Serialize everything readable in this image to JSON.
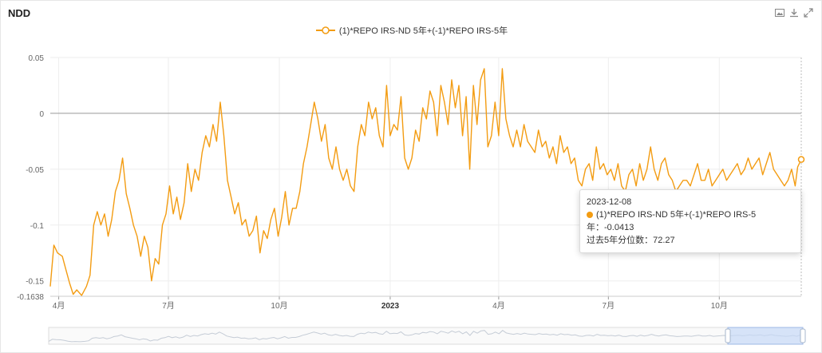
{
  "header": {
    "title": "NDD"
  },
  "toolbox": {
    "icons": [
      "save-image-icon",
      "download-icon",
      "fullscreen-icon"
    ]
  },
  "legend": {
    "label": "(1)*REPO IRS-ND 5年+(-1)*REPO IRS-5年",
    "color": "#f39c12"
  },
  "tooltip": {
    "date": "2023-12-08",
    "series_text": "(1)*REPO IRS-ND 5年+(-1)*REPO IRS-5年：-0.0413",
    "percentile_text": "过去5年分位数：72.27"
  },
  "colors": {
    "line": "#f39c12",
    "axis": "#999999",
    "grid": "#eeeeee",
    "zoom_fill": "#c6d9f7"
  },
  "chart_data": {
    "type": "line",
    "title": "NDD",
    "xlabel": "",
    "ylabel": "",
    "ylim": [
      -0.1638,
      0.05
    ],
    "y_ticks": [
      {
        "value": 0.05,
        "label": "0.05"
      },
      {
        "value": 0,
        "label": "0"
      },
      {
        "value": -0.05,
        "label": "-0.05"
      },
      {
        "value": -0.1,
        "label": "-0.1"
      },
      {
        "value": -0.15,
        "label": "-0.15"
      },
      {
        "value": -0.1638,
        "label": "-0.1638"
      }
    ],
    "x_range": [
      "2022-03-25",
      "2023-12-08"
    ],
    "x_ticks": [
      {
        "date": "2022-04-01",
        "label": "4月",
        "bold": false
      },
      {
        "date": "2022-07-01",
        "label": "7月",
        "bold": false
      },
      {
        "date": "2022-10-01",
        "label": "10月",
        "bold": false
      },
      {
        "date": "2023-01-01",
        "label": "2023",
        "bold": true
      },
      {
        "date": "2023-04-01",
        "label": "4月",
        "bold": false
      },
      {
        "date": "2023-07-01",
        "label": "7月",
        "bold": false
      },
      {
        "date": "2023-10-01",
        "label": "10月",
        "bold": false
      }
    ],
    "grid": true,
    "legend_position": "top-center",
    "series": [
      {
        "name": "(1)*REPO IRS-ND 5年+(-1)*REPO IRS-5年",
        "points": [
          [
            "2022-03-25",
            -0.155
          ],
          [
            "2022-03-28",
            -0.118
          ],
          [
            "2022-03-31",
            -0.125
          ],
          [
            "2022-04-04",
            -0.128
          ],
          [
            "2022-04-07",
            -0.14
          ],
          [
            "2022-04-10",
            -0.152
          ],
          [
            "2022-04-13",
            -0.162
          ],
          [
            "2022-04-16",
            -0.158
          ],
          [
            "2022-04-20",
            -0.163
          ],
          [
            "2022-04-24",
            -0.155
          ],
          [
            "2022-04-27",
            -0.145
          ],
          [
            "2022-04-30",
            -0.1
          ],
          [
            "2022-05-03",
            -0.088
          ],
          [
            "2022-05-06",
            -0.1
          ],
          [
            "2022-05-09",
            -0.09
          ],
          [
            "2022-05-12",
            -0.11
          ],
          [
            "2022-05-15",
            -0.095
          ],
          [
            "2022-05-18",
            -0.07
          ],
          [
            "2022-05-21",
            -0.06
          ],
          [
            "2022-05-24",
            -0.04
          ],
          [
            "2022-05-27",
            -0.072
          ],
          [
            "2022-05-30",
            -0.085
          ],
          [
            "2022-06-02",
            -0.1
          ],
          [
            "2022-06-05",
            -0.11
          ],
          [
            "2022-06-08",
            -0.128
          ],
          [
            "2022-06-11",
            -0.11
          ],
          [
            "2022-06-14",
            -0.12
          ],
          [
            "2022-06-17",
            -0.15
          ],
          [
            "2022-06-20",
            -0.13
          ],
          [
            "2022-06-23",
            -0.135
          ],
          [
            "2022-06-26",
            -0.1
          ],
          [
            "2022-06-29",
            -0.09
          ],
          [
            "2022-07-02",
            -0.065
          ],
          [
            "2022-07-05",
            -0.09
          ],
          [
            "2022-07-08",
            -0.075
          ],
          [
            "2022-07-11",
            -0.095
          ],
          [
            "2022-07-14",
            -0.08
          ],
          [
            "2022-07-17",
            -0.045
          ],
          [
            "2022-07-20",
            -0.07
          ],
          [
            "2022-07-23",
            -0.05
          ],
          [
            "2022-07-26",
            -0.06
          ],
          [
            "2022-07-29",
            -0.035
          ],
          [
            "2022-08-01",
            -0.02
          ],
          [
            "2022-08-04",
            -0.03
          ],
          [
            "2022-08-07",
            -0.01
          ],
          [
            "2022-08-10",
            -0.025
          ],
          [
            "2022-08-13",
            0.01
          ],
          [
            "2022-08-16",
            -0.02
          ],
          [
            "2022-08-19",
            -0.06
          ],
          [
            "2022-08-22",
            -0.075
          ],
          [
            "2022-08-25",
            -0.09
          ],
          [
            "2022-08-28",
            -0.08
          ],
          [
            "2022-08-31",
            -0.1
          ],
          [
            "2022-09-03",
            -0.095
          ],
          [
            "2022-09-06",
            -0.11
          ],
          [
            "2022-09-09",
            -0.105
          ],
          [
            "2022-09-12",
            -0.092
          ],
          [
            "2022-09-15",
            -0.125
          ],
          [
            "2022-09-18",
            -0.105
          ],
          [
            "2022-09-21",
            -0.112
          ],
          [
            "2022-09-24",
            -0.095
          ],
          [
            "2022-09-27",
            -0.085
          ],
          [
            "2022-09-30",
            -0.11
          ],
          [
            "2022-10-03",
            -0.093
          ],
          [
            "2022-10-06",
            -0.07
          ],
          [
            "2022-10-09",
            -0.1
          ],
          [
            "2022-10-12",
            -0.085
          ],
          [
            "2022-10-15",
            -0.085
          ],
          [
            "2022-10-18",
            -0.07
          ],
          [
            "2022-10-21",
            -0.045
          ],
          [
            "2022-10-24",
            -0.03
          ],
          [
            "2022-10-27",
            -0.01
          ],
          [
            "2022-10-30",
            0.01
          ],
          [
            "2022-11-02",
            -0.005
          ],
          [
            "2022-11-05",
            -0.025
          ],
          [
            "2022-11-08",
            -0.01
          ],
          [
            "2022-11-11",
            -0.04
          ],
          [
            "2022-11-14",
            -0.05
          ],
          [
            "2022-11-17",
            -0.03
          ],
          [
            "2022-11-20",
            -0.05
          ],
          [
            "2022-11-23",
            -0.06
          ],
          [
            "2022-11-26",
            -0.05
          ],
          [
            "2022-11-29",
            -0.065
          ],
          [
            "2022-12-02",
            -0.07
          ],
          [
            "2022-12-05",
            -0.03
          ],
          [
            "2022-12-08",
            -0.01
          ],
          [
            "2022-12-11",
            -0.02
          ],
          [
            "2022-12-14",
            0.01
          ],
          [
            "2022-12-17",
            -0.005
          ],
          [
            "2022-12-20",
            0.005
          ],
          [
            "2022-12-23",
            -0.02
          ],
          [
            "2022-12-26",
            -0.03
          ],
          [
            "2022-12-29",
            0.025
          ],
          [
            "2023-01-01",
            -0.02
          ],
          [
            "2023-01-04",
            -0.01
          ],
          [
            "2023-01-07",
            -0.015
          ],
          [
            "2023-01-10",
            0.015
          ],
          [
            "2023-01-13",
            -0.04
          ],
          [
            "2023-01-16",
            -0.05
          ],
          [
            "2023-01-19",
            -0.04
          ],
          [
            "2023-01-22",
            -0.015
          ],
          [
            "2023-01-25",
            -0.025
          ],
          [
            "2023-01-28",
            0.005
          ],
          [
            "2023-01-31",
            -0.005
          ],
          [
            "2023-02-03",
            0.02
          ],
          [
            "2023-02-06",
            0.01
          ],
          [
            "2023-02-09",
            -0.02
          ],
          [
            "2023-02-12",
            0.025
          ],
          [
            "2023-02-15",
            0.01
          ],
          [
            "2023-02-18",
            -0.01
          ],
          [
            "2023-02-21",
            0.03
          ],
          [
            "2023-02-24",
            0.005
          ],
          [
            "2023-02-27",
            0.025
          ],
          [
            "2023-03-02",
            -0.02
          ],
          [
            "2023-03-05",
            0.015
          ],
          [
            "2023-03-08",
            -0.05
          ],
          [
            "2023-03-11",
            0.025
          ],
          [
            "2023-03-14",
            -0.01
          ],
          [
            "2023-03-17",
            0.03
          ],
          [
            "2023-03-20",
            0.04
          ],
          [
            "2023-03-23",
            -0.03
          ],
          [
            "2023-03-26",
            -0.02
          ],
          [
            "2023-03-29",
            0.01
          ],
          [
            "2023-04-01",
            -0.02
          ],
          [
            "2023-04-04",
            0.04
          ],
          [
            "2023-04-07",
            -0.005
          ],
          [
            "2023-04-10",
            -0.02
          ],
          [
            "2023-04-13",
            -0.03
          ],
          [
            "2023-04-16",
            -0.015
          ],
          [
            "2023-04-19",
            -0.03
          ],
          [
            "2023-04-22",
            -0.01
          ],
          [
            "2023-04-25",
            -0.025
          ],
          [
            "2023-04-28",
            -0.03
          ],
          [
            "2023-05-01",
            -0.035
          ],
          [
            "2023-05-04",
            -0.015
          ],
          [
            "2023-05-07",
            -0.03
          ],
          [
            "2023-05-10",
            -0.025
          ],
          [
            "2023-05-13",
            -0.04
          ],
          [
            "2023-05-16",
            -0.03
          ],
          [
            "2023-05-19",
            -0.045
          ],
          [
            "2023-05-22",
            -0.02
          ],
          [
            "2023-05-25",
            -0.035
          ],
          [
            "2023-05-28",
            -0.03
          ],
          [
            "2023-05-31",
            -0.045
          ],
          [
            "2023-06-03",
            -0.04
          ],
          [
            "2023-06-06",
            -0.06
          ],
          [
            "2023-06-09",
            -0.065
          ],
          [
            "2023-06-12",
            -0.05
          ],
          [
            "2023-06-15",
            -0.045
          ],
          [
            "2023-06-18",
            -0.06
          ],
          [
            "2023-06-21",
            -0.03
          ],
          [
            "2023-06-24",
            -0.05
          ],
          [
            "2023-06-27",
            -0.045
          ],
          [
            "2023-06-30",
            -0.055
          ],
          [
            "2023-07-03",
            -0.05
          ],
          [
            "2023-07-06",
            -0.06
          ],
          [
            "2023-07-09",
            -0.045
          ],
          [
            "2023-07-12",
            -0.065
          ],
          [
            "2023-07-15",
            -0.07
          ],
          [
            "2023-07-18",
            -0.055
          ],
          [
            "2023-07-21",
            -0.05
          ],
          [
            "2023-07-24",
            -0.065
          ],
          [
            "2023-07-27",
            -0.045
          ],
          [
            "2023-07-30",
            -0.06
          ],
          [
            "2023-08-02",
            -0.05
          ],
          [
            "2023-08-05",
            -0.03
          ],
          [
            "2023-08-08",
            -0.05
          ],
          [
            "2023-08-11",
            -0.06
          ],
          [
            "2023-08-14",
            -0.045
          ],
          [
            "2023-08-17",
            -0.04
          ],
          [
            "2023-08-20",
            -0.055
          ],
          [
            "2023-08-23",
            -0.06
          ],
          [
            "2023-08-26",
            -0.07
          ],
          [
            "2023-08-29",
            -0.065
          ],
          [
            "2023-09-01",
            -0.06
          ],
          [
            "2023-09-04",
            -0.06
          ],
          [
            "2023-09-07",
            -0.065
          ],
          [
            "2023-09-10",
            -0.055
          ],
          [
            "2023-09-13",
            -0.045
          ],
          [
            "2023-09-16",
            -0.06
          ],
          [
            "2023-09-19",
            -0.06
          ],
          [
            "2023-09-22",
            -0.05
          ],
          [
            "2023-09-25",
            -0.065
          ],
          [
            "2023-09-28",
            -0.06
          ],
          [
            "2023-10-01",
            -0.055
          ],
          [
            "2023-10-04",
            -0.05
          ],
          [
            "2023-10-07",
            -0.06
          ],
          [
            "2023-10-10",
            -0.055
          ],
          [
            "2023-10-13",
            -0.05
          ],
          [
            "2023-10-16",
            -0.045
          ],
          [
            "2023-10-19",
            -0.055
          ],
          [
            "2023-10-22",
            -0.05
          ],
          [
            "2023-10-25",
            -0.04
          ],
          [
            "2023-10-28",
            -0.05
          ],
          [
            "2023-10-31",
            -0.045
          ],
          [
            "2023-11-03",
            -0.04
          ],
          [
            "2023-11-06",
            -0.055
          ],
          [
            "2023-11-09",
            -0.045
          ],
          [
            "2023-11-12",
            -0.035
          ],
          [
            "2023-11-15",
            -0.05
          ],
          [
            "2023-11-18",
            -0.055
          ],
          [
            "2023-11-21",
            -0.06
          ],
          [
            "2023-11-24",
            -0.065
          ],
          [
            "2023-11-27",
            -0.06
          ],
          [
            "2023-11-30",
            -0.05
          ],
          [
            "2023-12-03",
            -0.065
          ],
          [
            "2023-12-05",
            -0.048
          ],
          [
            "2023-12-08",
            -0.0413
          ]
        ]
      }
    ]
  }
}
